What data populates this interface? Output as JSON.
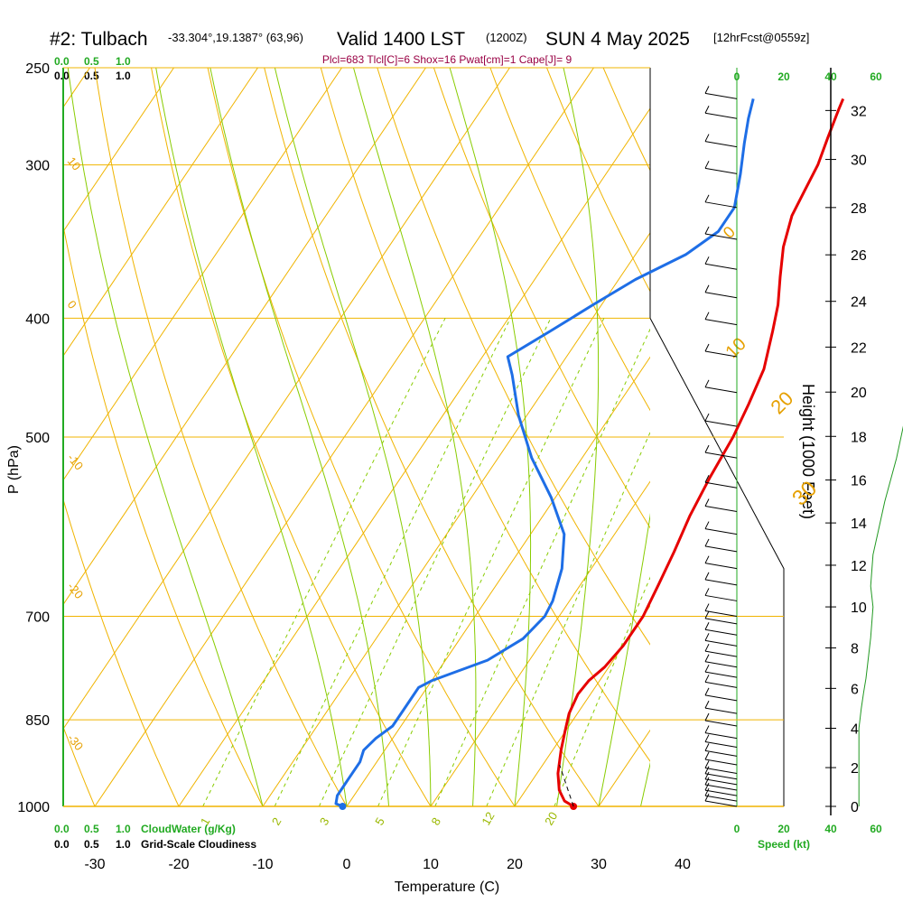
{
  "header": {
    "station": "#2: Tulbach",
    "coords": "-33.304°,19.1387° (63,96)",
    "valid": "Valid 1400 LST",
    "zulu": "(1200Z)",
    "date": "SUN 4 May 2025",
    "fcst": "[12hrFcst@0559z]"
  },
  "params_line": "Plcl=683 Tlcl[C]=6 Shox=16 Pwat[cm]=1 Cape[J]= 9",
  "colors": {
    "temperature": "#e60000",
    "dewpoint": "#1e6ee6",
    "isotherm": "#f0b400",
    "dry_adiabat": "#f0b400",
    "moist_adiabat": "#88cc00",
    "mixing_ratio": "#88cc00",
    "height_curve": "#229922",
    "axis_green": "#22aa22",
    "params_text": "#990044"
  },
  "top_scales": {
    "green": [
      "0.0",
      "0.5",
      "1.0"
    ],
    "black": [
      "0.0",
      "0.5",
      "1.0"
    ]
  },
  "bottom_scales": {
    "green": [
      "0.0",
      "0.5",
      "1.0"
    ],
    "green_label": "CloudWater (g/Kg)",
    "black": [
      "0.0",
      "0.5",
      "1.0"
    ],
    "black_label": "Grid-Scale Cloudiness"
  },
  "speed_axis": {
    "top_ticks": [
      "0",
      "20",
      "40",
      "60"
    ],
    "bottom_ticks": [
      "0",
      "20",
      "40",
      "60"
    ],
    "label": "Speed (kt)"
  },
  "chart_data": {
    "type": "line",
    "xlabel": "Temperature (C)",
    "ylabel": "P (hPa)",
    "y2label": "Height (1000 Feet)",
    "xlim": [
      -35,
      36
    ],
    "ylim": [
      1000,
      250
    ],
    "y_log_scale": true,
    "x_ticks": [
      -30,
      -20,
      -10,
      0,
      10,
      20,
      30,
      40
    ],
    "y_ticks": [
      1000,
      850,
      700,
      500,
      400,
      300,
      250
    ],
    "height_ticks": [
      0,
      2,
      4,
      6,
      8,
      10,
      12,
      14,
      16,
      18,
      20,
      22,
      24,
      26,
      28,
      30,
      32
    ],
    "isotherm_labels": [
      {
        "text": "0",
        "p": 345,
        "t": 0
      },
      {
        "text": "10",
        "p": 432,
        "t": 10
      },
      {
        "text": "20",
        "p": 480,
        "t": 20
      },
      {
        "text": "30",
        "p": 570,
        "t": 30
      }
    ],
    "left_isotherm_labels": [
      {
        "text": "10",
        "p": 298
      },
      {
        "text": "0",
        "p": 390
      },
      {
        "text": "-10",
        "p": 520
      },
      {
        "text": "-20",
        "p": 662
      },
      {
        "text": "-30",
        "p": 880
      }
    ],
    "mixing_ratio_labels": [
      {
        "text": "1",
        "t": -16
      },
      {
        "text": "2",
        "t": -7.5
      },
      {
        "text": "3",
        "t": -1.8
      },
      {
        "text": "5",
        "t": 4.8
      },
      {
        "text": "8",
        "t": 11.5
      },
      {
        "text": "12",
        "t": 17.5
      },
      {
        "text": "20",
        "t": 25
      }
    ],
    "series": [
      {
        "name": "Temperature",
        "points": [
          [
            27,
            1000
          ],
          [
            25.5,
            990
          ],
          [
            24,
            970
          ],
          [
            22.5,
            940
          ],
          [
            21,
            900
          ],
          [
            20,
            870
          ],
          [
            19,
            840
          ],
          [
            18.5,
            810
          ],
          [
            18.7,
            790
          ],
          [
            19.5,
            770
          ],
          [
            20,
            740
          ],
          [
            20,
            700
          ],
          [
            19.3,
            660
          ],
          [
            18.5,
            620
          ],
          [
            17.5,
            580
          ],
          [
            16.8,
            540
          ],
          [
            16.3,
            500
          ],
          [
            15.5,
            470
          ],
          [
            14.5,
            440
          ],
          [
            12.5,
            410
          ],
          [
            11,
            390
          ],
          [
            9,
            370
          ],
          [
            7,
            350
          ],
          [
            5.5,
            330
          ],
          [
            5,
            315
          ],
          [
            4.5,
            300
          ],
          [
            3.5,
            285
          ],
          [
            2.5,
            270
          ],
          [
            2.2,
            265
          ]
        ]
      },
      {
        "name": "Dewpoint",
        "points": [
          [
            -0.5,
            1000
          ],
          [
            -1.5,
            995
          ],
          [
            -2,
            980
          ],
          [
            -2,
            950
          ],
          [
            -2,
            920
          ],
          [
            -2.5,
            900
          ],
          [
            -2,
            880
          ],
          [
            -1,
            860
          ],
          [
            -1,
            840
          ],
          [
            -1,
            820
          ],
          [
            -1,
            800
          ],
          [
            0,
            790
          ],
          [
            5,
            760
          ],
          [
            7.5,
            730
          ],
          [
            8.3,
            700
          ],
          [
            8,
            680
          ],
          [
            6.5,
            640
          ],
          [
            4,
            600
          ],
          [
            -0.5,
            560
          ],
          [
            -6,
            520
          ],
          [
            -11,
            480
          ],
          [
            -15,
            445
          ],
          [
            -17,
            430
          ],
          [
            -14,
            410
          ],
          [
            -11,
            390
          ],
          [
            -8,
            372
          ],
          [
            -4,
            355
          ],
          [
            -2,
            340
          ],
          [
            -2,
            325
          ],
          [
            -4,
            305
          ],
          [
            -6,
            288
          ],
          [
            -7.5,
            275
          ],
          [
            -8.5,
            265
          ]
        ]
      }
    ],
    "height_curve_kft": [
      [
        52,
        0
      ],
      [
        52,
        1
      ],
      [
        52,
        2
      ],
      [
        52,
        3
      ],
      [
        52,
        4
      ],
      [
        53,
        5
      ],
      [
        54,
        5.8
      ],
      [
        55,
        6.5
      ],
      [
        56,
        7.5
      ],
      [
        57,
        8.5
      ],
      [
        58,
        10
      ],
      [
        57,
        11
      ],
      [
        58,
        12.5
      ],
      [
        60,
        13.5
      ],
      [
        63,
        15
      ],
      [
        68,
        17
      ],
      [
        72,
        19
      ],
      [
        76,
        21
      ],
      [
        80,
        23
      ],
      [
        85,
        25
      ],
      [
        88,
        27
      ],
      [
        90,
        29
      ],
      [
        91,
        31
      ],
      [
        92,
        33
      ]
    ],
    "wind_barbs": [
      {
        "p": 1000,
        "spd": 5,
        "dir": 170
      },
      {
        "p": 990,
        "spd": 5,
        "dir": 170
      },
      {
        "p": 980,
        "spd": 5,
        "dir": 170
      },
      {
        "p": 970,
        "spd": 5,
        "dir": 170
      },
      {
        "p": 960,
        "spd": 5,
        "dir": 170
      },
      {
        "p": 950,
        "spd": 5,
        "dir": 170
      },
      {
        "p": 940,
        "spd": 5,
        "dir": 170
      },
      {
        "p": 925,
        "spd": 5,
        "dir": 170
      },
      {
        "p": 910,
        "spd": 5,
        "dir": 170
      },
      {
        "p": 895,
        "spd": 5,
        "dir": 170
      },
      {
        "p": 880,
        "spd": 5,
        "dir": 170
      },
      {
        "p": 860,
        "spd": 5,
        "dir": 170
      },
      {
        "p": 840,
        "spd": 5,
        "dir": 170
      },
      {
        "p": 820,
        "spd": 5,
        "dir": 170
      },
      {
        "p": 800,
        "spd": 5,
        "dir": 170
      },
      {
        "p": 785,
        "spd": 5,
        "dir": 170
      },
      {
        "p": 770,
        "spd": 5,
        "dir": 170
      },
      {
        "p": 755,
        "spd": 5,
        "dir": 170
      },
      {
        "p": 740,
        "spd": 5,
        "dir": 170
      },
      {
        "p": 725,
        "spd": 5,
        "dir": 170
      },
      {
        "p": 710,
        "spd": 5,
        "dir": 170
      },
      {
        "p": 700,
        "spd": 5,
        "dir": 170
      },
      {
        "p": 680,
        "spd": 5,
        "dir": 170
      },
      {
        "p": 660,
        "spd": 5,
        "dir": 170
      },
      {
        "p": 640,
        "spd": 5,
        "dir": 170
      },
      {
        "p": 620,
        "spd": 5,
        "dir": 170
      },
      {
        "p": 600,
        "spd": 5,
        "dir": 170
      },
      {
        "p": 575,
        "spd": 5,
        "dir": 170
      },
      {
        "p": 550,
        "spd": 5,
        "dir": 170
      },
      {
        "p": 520,
        "spd": 5,
        "dir": 170
      },
      {
        "p": 490,
        "spd": 5,
        "dir": 170
      },
      {
        "p": 460,
        "spd": 5,
        "dir": 170
      },
      {
        "p": 430,
        "spd": 5,
        "dir": 170
      },
      {
        "p": 405,
        "spd": 5,
        "dir": 170
      },
      {
        "p": 385,
        "spd": 5,
        "dir": 170
      },
      {
        "p": 365,
        "spd": 5,
        "dir": 170
      },
      {
        "p": 345,
        "spd": 5,
        "dir": 170
      },
      {
        "p": 325,
        "spd": 5,
        "dir": 170
      },
      {
        "p": 305,
        "spd": 5,
        "dir": 170
      },
      {
        "p": 290,
        "spd": 5,
        "dir": 170
      },
      {
        "p": 275,
        "spd": 5,
        "dir": 170
      },
      {
        "p": 265,
        "spd": 5,
        "dir": 170
      }
    ]
  }
}
